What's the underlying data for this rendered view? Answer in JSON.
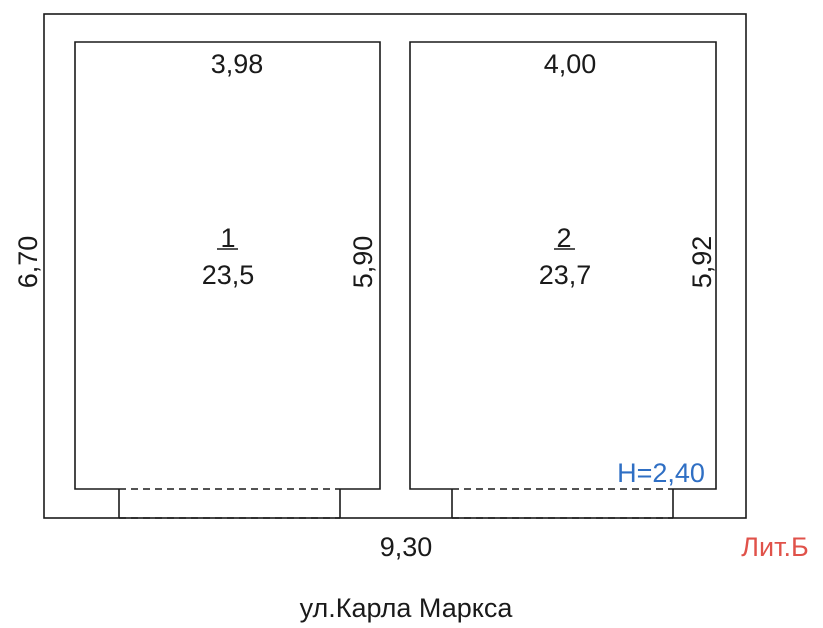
{
  "plan": {
    "overall_width": "9,30",
    "overall_depth": "6,70",
    "ceiling_height": "H=2,40",
    "letter": "Лит.Б",
    "street": "ул.Карла Маркса",
    "rooms": [
      {
        "number": "1",
        "area": "23,5",
        "width": "3,98",
        "depth": "5,90"
      },
      {
        "number": "2",
        "area": "23,7",
        "width": "4,00",
        "depth": "5,92"
      }
    ]
  },
  "colors": {
    "ink": "#1a1a1a",
    "height_label": "#2f6fc4",
    "letter_label": "#e0524a"
  }
}
